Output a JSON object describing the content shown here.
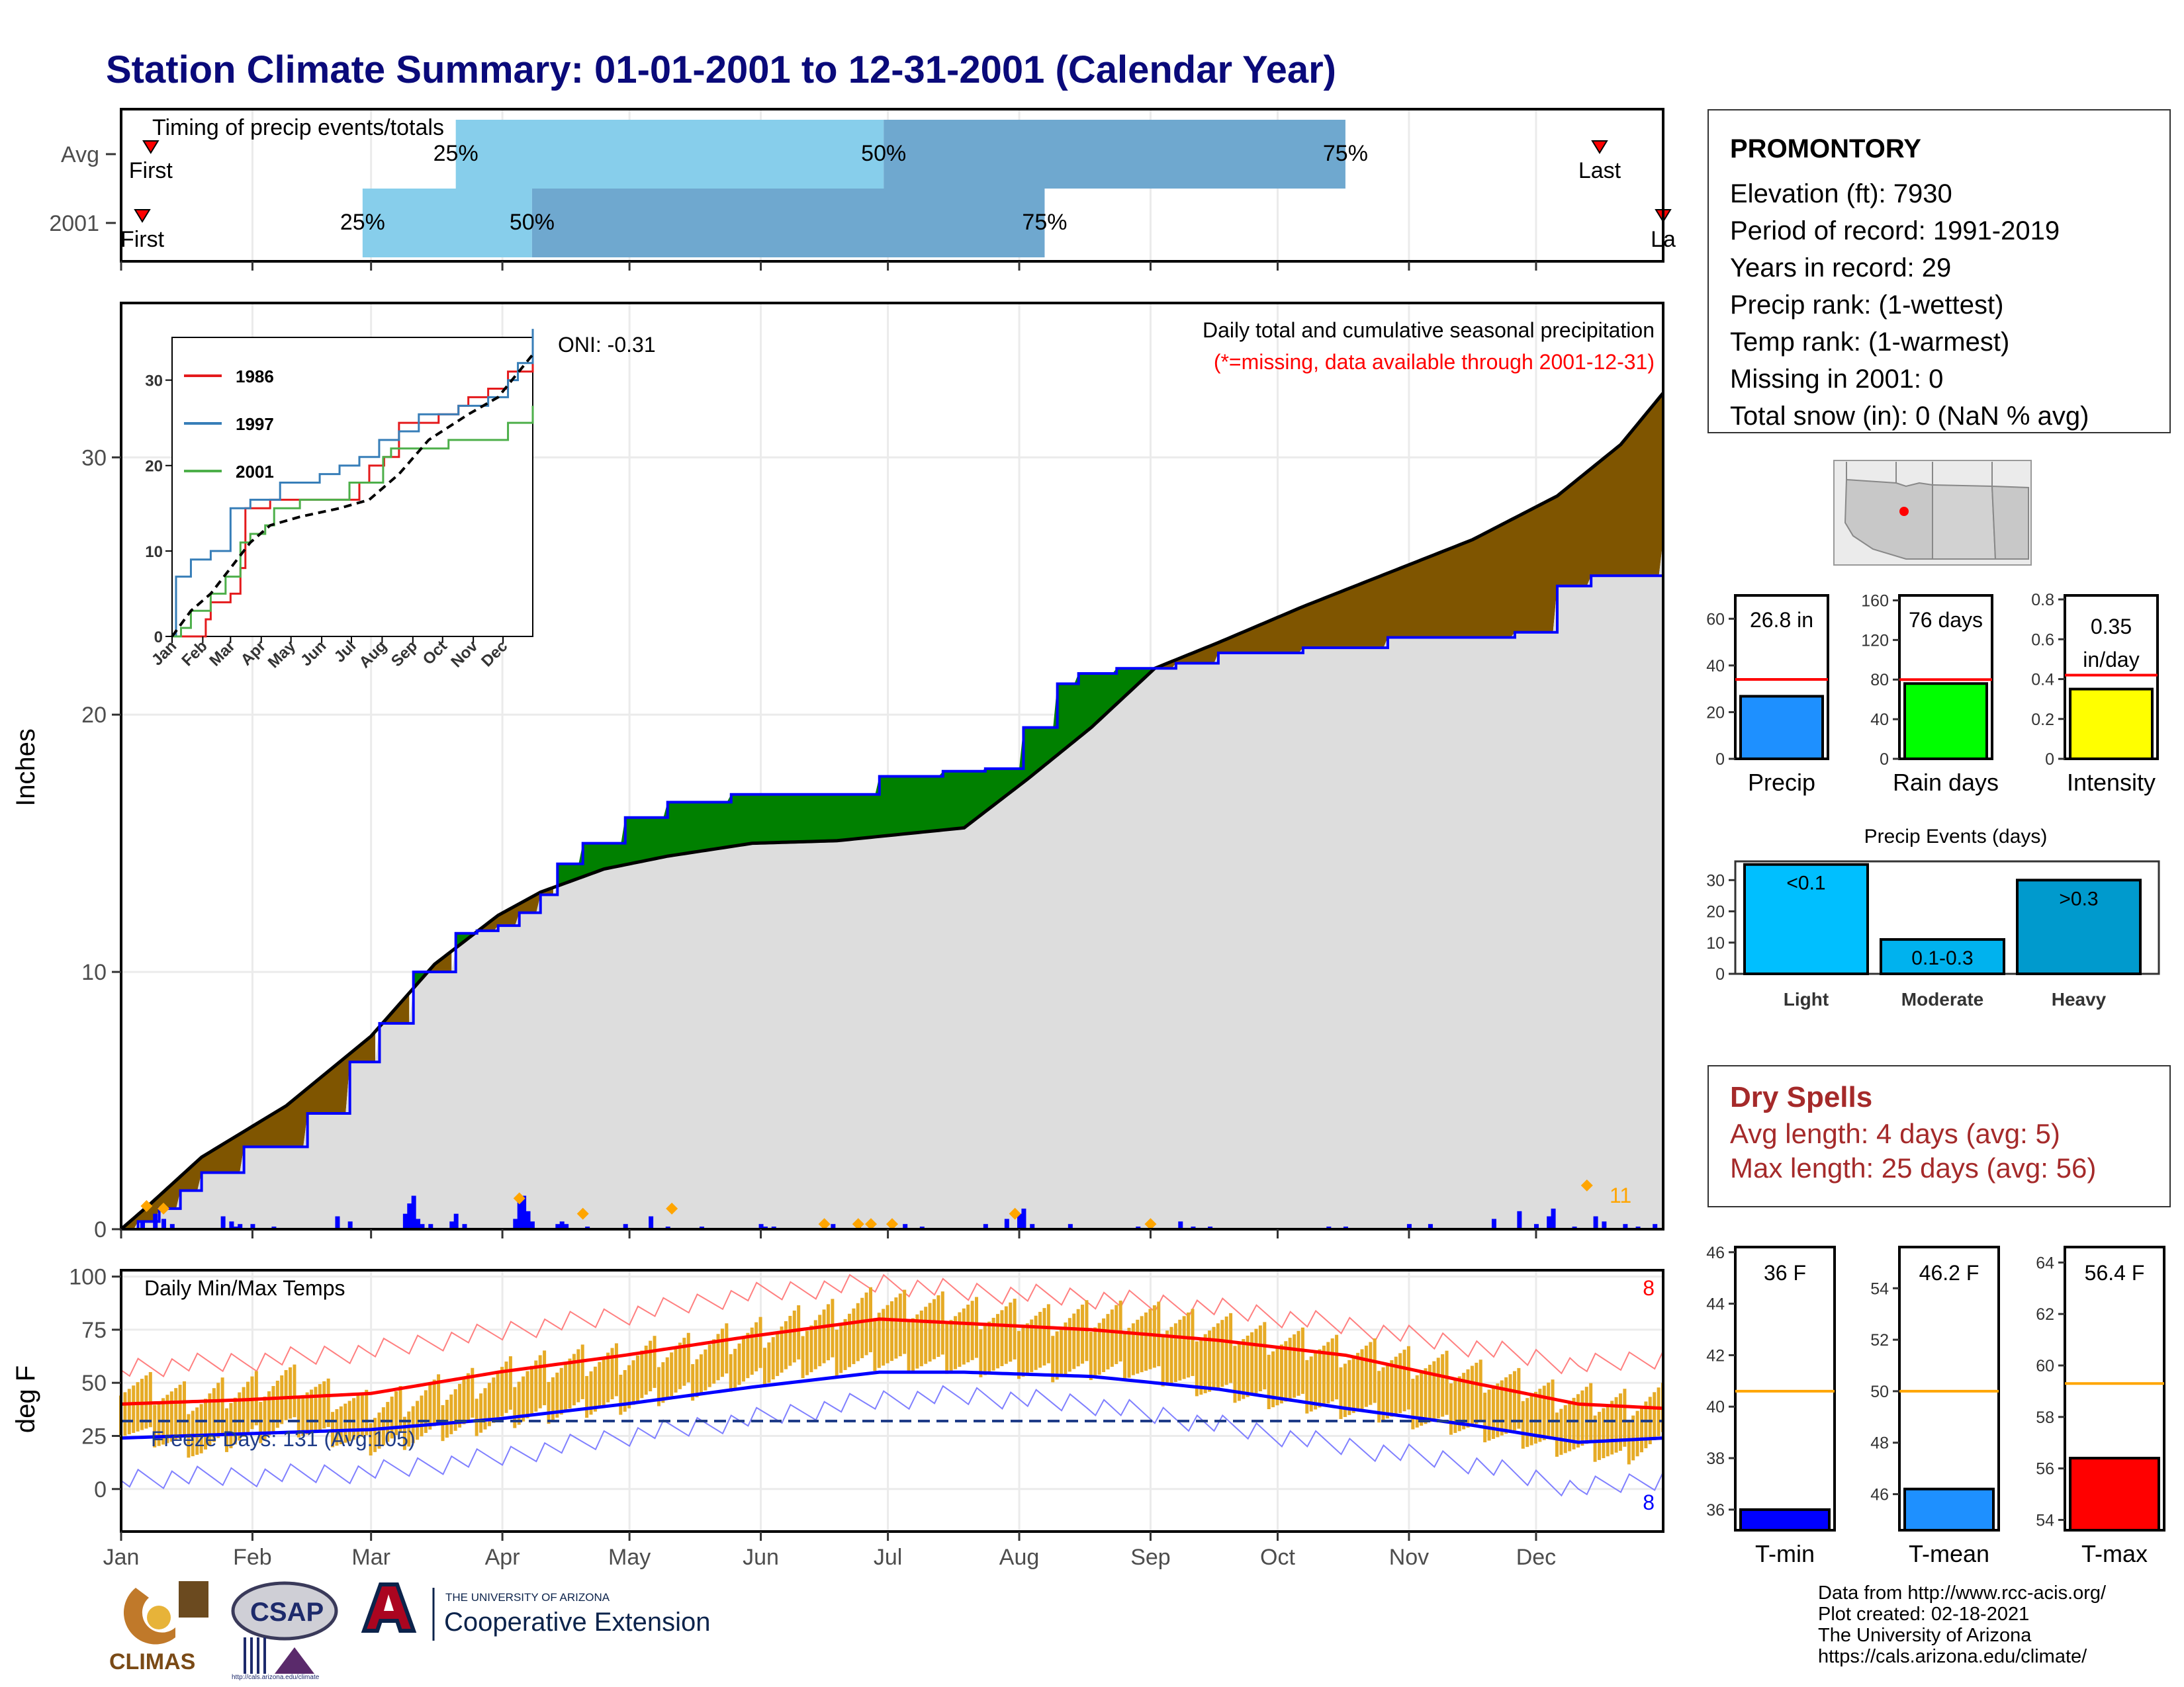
{
  "page_title": "Station Climate Summary: 01-01-2001 to 12-31-2001 (Calendar Year)",
  "station": {
    "name": "PROMONTORY",
    "lines": [
      "Elevation (ft): 7930",
      "Period of record: 1991-2019",
      "Years in record: 29",
      "Precip rank:  (1-wettest)",
      "Temp rank:  (1-warmest)",
      "Missing in 2001: 0",
      "Total snow (in): 0 (NaN % avg)"
    ]
  },
  "dry_spells": {
    "heading": "Dry Spells",
    "avg_length": "Avg length: 4 days (avg: 5)",
    "max_length": "Max length: 25 days (avg: 56)"
  },
  "credits": [
    "Data from http://www.rcc-acis.org/",
    "Plot created: 02-18-2021",
    "The University of Arizona",
    "https://cals.arizona.edu/climate/"
  ],
  "logos": {
    "climas": "CLIMAS",
    "csap": "CSAP",
    "csap_url": "http://cals.arizona.edu/climate",
    "ua_top": "THE UNIVERSITY OF ARIZONA",
    "ua_bottom": "Cooperative Extension"
  },
  "colors": {
    "title": "#0a0a7a",
    "observed_fill": "#dddddd",
    "deficit_fill": "#7f5500",
    "surplus_fill": "#008000",
    "observed_line": "#0000ff",
    "normal_line": "#000000",
    "bar_precip": "#1e90ff",
    "bar_raindays": "#00ff00",
    "bar_intensity": "#ffff00",
    "events_light": "#00bfff",
    "events_moderate": "#00b2ee",
    "events_heavy": "#009acd",
    "tmin": "#0000ff",
    "tmean": "#1e90ff",
    "tmax": "#ff0000",
    "temp_range_bar": "#e6ab26",
    "dry_spells": "#a52a2a",
    "quartile_light": "#87ceeb",
    "quartile_dark": "#6fa8cf"
  },
  "chart_data": [
    {
      "id": "timing",
      "type": "bar",
      "title": "Timing of precip events/totals",
      "categories": [
        "Avg",
        "2001"
      ],
      "x_unit": "day of year",
      "xlim": [
        1,
        365
      ],
      "rows": [
        {
          "name": "Avg",
          "first": 8,
          "p25": 80,
          "p50": 181,
          "p75": 290,
          "last": 350,
          "first_label": "First",
          "last_label": "Last"
        },
        {
          "name": "2001",
          "first": 6,
          "p25": 58,
          "p50": 98,
          "p75": 219,
          "last": 365,
          "first_label": "First",
          "last_label": "La"
        }
      ],
      "quartile_labels": [
        "25%",
        "50%",
        "75%"
      ]
    },
    {
      "id": "cumulative_precip",
      "type": "area",
      "ylabel": "Inches",
      "ylim": [
        0,
        36
      ],
      "yticks": [
        0,
        10,
        20,
        30
      ],
      "title": "Daily total and cumulative seasonal precipitation",
      "subtitle": "(*=missing, data available through 2001-12-31)",
      "oni_label": "ONI: -0.31",
      "event_count_label": "11",
      "x_unit": "day of year",
      "series": [
        {
          "name": "observed",
          "x": [
            1,
            5,
            10,
            15,
            20,
            30,
            45,
            55,
            62,
            70,
            80,
            85,
            90,
            95,
            100,
            104,
            110,
            120,
            130,
            145,
            180,
            195,
            205,
            214,
            222,
            227,
            236,
            250,
            260,
            280,
            300,
            330,
            340,
            348,
            365
          ],
          "y": [
            0,
            0.3,
            0.8,
            1.5,
            2.2,
            3.2,
            4.5,
            6.5,
            8.0,
            10.0,
            11.5,
            11.6,
            11.8,
            12.3,
            13.0,
            14.2,
            15.0,
            16.0,
            16.6,
            16.9,
            17.6,
            17.8,
            17.9,
            19.5,
            21.2,
            21.6,
            21.8,
            22.0,
            22.4,
            22.6,
            23.0,
            23.2,
            25.0,
            25.4,
            26.8
          ]
        },
        {
          "name": "normal",
          "x": [
            1,
            8,
            20,
            40,
            60,
            75,
            90,
            100,
            115,
            130,
            150,
            170,
            200,
            215,
            230,
            245,
            260,
            280,
            300,
            320,
            340,
            355,
            365
          ],
          "y": [
            0,
            1.0,
            2.8,
            4.8,
            7.5,
            10.3,
            12.2,
            13.1,
            14.0,
            14.5,
            15.0,
            15.1,
            15.6,
            17.5,
            19.5,
            21.8,
            22.8,
            24.2,
            25.5,
            26.8,
            28.5,
            30.5,
            32.5
          ]
        }
      ],
      "daily": {
        "x": [
          6,
          9,
          11,
          13,
          25,
          27,
          28,
          29,
          32,
          37,
          52,
          55,
          68,
          69,
          70,
          71,
          72,
          74,
          79,
          80,
          82,
          94,
          95,
          96,
          97,
          98,
          104,
          105,
          106,
          111,
          120,
          126,
          130,
          138,
          152,
          153,
          155,
          169,
          175,
          186,
          190,
          205,
          210,
          213,
          214,
          216,
          225,
          241,
          251,
          254,
          258,
          286,
          290,
          305,
          310,
          325,
          331,
          335,
          338,
          339,
          344,
          349,
          351,
          356,
          359,
          363
        ],
        "y": [
          0.3,
          0.6,
          0.4,
          0.2,
          0.5,
          0.3,
          0.1,
          0.2,
          0.2,
          0.1,
          0.5,
          0.3,
          0.6,
          1.0,
          1.3,
          0.4,
          0.2,
          0.2,
          0.3,
          0.6,
          0.2,
          0.4,
          1.1,
          1.3,
          0.7,
          0.3,
          0.2,
          0.3,
          0.2,
          0.1,
          0.2,
          0.5,
          0.1,
          0.1,
          0.2,
          0.1,
          0.1,
          0.2,
          0.3,
          0.2,
          0.1,
          0.2,
          0.4,
          0.6,
          0.8,
          0.2,
          0.2,
          0.1,
          0.3,
          0.1,
          0.1,
          0.1,
          0.1,
          0.2,
          0.2,
          0.4,
          0.7,
          0.2,
          0.5,
          0.8,
          0.1,
          0.5,
          0.3,
          0.2,
          0.1,
          0.2
        ]
      },
      "markers": {
        "x": [
          7,
          11,
          95,
          110,
          131,
          167,
          175,
          178,
          183,
          212,
          244,
          347
        ],
        "y": [
          0.9,
          0.8,
          1.2,
          0.6,
          0.8,
          0.2,
          0.2,
          0.2,
          0.2,
          0.6,
          0.2,
          1.7
        ]
      }
    },
    {
      "id": "inset_cumulative",
      "type": "line",
      "ylim": [
        0,
        35
      ],
      "yticks": [
        0,
        10,
        20,
        30
      ],
      "categories": [
        "Jan",
        "Feb",
        "Mar",
        "Apr",
        "May",
        "Jun",
        "Jul",
        "Aug",
        "Sep",
        "Oct",
        "Nov",
        "Dec"
      ],
      "series": [
        {
          "name": "1986",
          "color": "#e41a1c",
          "x": [
            1,
            30,
            35,
            40,
            60,
            70,
            75,
            100,
            150,
            160,
            185,
            190,
            200,
            215,
            230,
            250,
            270,
            290,
            300,
            320,
            340,
            365
          ],
          "y": [
            0,
            0,
            2,
            4,
            5,
            8,
            15,
            16,
            16,
            16,
            16,
            18,
            20,
            21,
            25,
            25,
            26,
            27,
            28,
            29,
            31,
            33
          ]
        },
        {
          "name": "1997",
          "color": "#377eb8",
          "x": [
            1,
            5,
            20,
            40,
            60,
            80,
            110,
            150,
            170,
            190,
            210,
            230,
            250,
            270,
            290,
            320,
            340,
            350,
            365
          ],
          "y": [
            0,
            7,
            9,
            10,
            15,
            16,
            18,
            19,
            20,
            21,
            23,
            24,
            26,
            26,
            27,
            28,
            30,
            32,
            36
          ]
        },
        {
          "name": "2001",
          "color": "#4daf4a",
          "x": [
            1,
            10,
            20,
            40,
            55,
            70,
            80,
            95,
            104,
            130,
            180,
            214,
            222,
            250,
            280,
            310,
            340,
            365
          ],
          "y": [
            0,
            1,
            3,
            5,
            7,
            11,
            12,
            13,
            15,
            16,
            18,
            21,
            22,
            22,
            23,
            23,
            25,
            27
          ]
        },
        {
          "name": "avg",
          "color": "#000000",
          "dashed": true,
          "x": [
            1,
            20,
            40,
            60,
            80,
            100,
            130,
            170,
            200,
            230,
            260,
            300,
            330,
            365
          ],
          "y": [
            0,
            3,
            5,
            8,
            11,
            13,
            14,
            15,
            16,
            19,
            23,
            26,
            28,
            33
          ]
        }
      ]
    },
    {
      "id": "totals_precip",
      "type": "bar",
      "categories": [
        "Precip"
      ],
      "values": [
        26.8
      ],
      "avg": 34,
      "ylim": [
        0,
        70
      ],
      "yticks": [
        0,
        20,
        40,
        60
      ],
      "label": "26.8 in"
    },
    {
      "id": "totals_raindays",
      "type": "bar",
      "categories": [
        "Rain days"
      ],
      "values": [
        76
      ],
      "avg": 80,
      "ylim": [
        0,
        165
      ],
      "yticks": [
        0,
        40,
        80,
        120,
        160
      ],
      "label": "76 days"
    },
    {
      "id": "totals_intensity",
      "type": "bar",
      "categories": [
        "Intensity"
      ],
      "values": [
        0.35
      ],
      "avg": 0.42,
      "ylim": [
        0,
        0.82
      ],
      "yticks": [
        0.0,
        0.2,
        0.4,
        0.6,
        0.8
      ],
      "label": "0.35 in/day"
    },
    {
      "id": "precip_events",
      "type": "bar",
      "title": "Precip Events (days)",
      "categories": [
        "Light",
        "Moderate",
        "Heavy"
      ],
      "values": [
        35,
        11,
        30
      ],
      "bar_labels": [
        "<0.1",
        "0.1-0.3",
        ">0.3"
      ],
      "ylim": [
        0,
        36
      ],
      "yticks": [
        0,
        10,
        20,
        30
      ]
    },
    {
      "id": "daily_temps",
      "type": "line",
      "ylabel": "deg F",
      "ylim": [
        -20,
        103
      ],
      "yticks": [
        0,
        25,
        50,
        75,
        100
      ],
      "title": "Daily Min/Max Temps",
      "freeze_label": "Freeze Days: 131 (Avg:105)",
      "freeze_line": 32,
      "count_hot": "8",
      "count_cold": "8",
      "categories": [
        "Jan",
        "Feb",
        "Mar",
        "Apr",
        "May",
        "Jun",
        "Jul",
        "Aug",
        "Sep",
        "Oct",
        "Nov",
        "Dec"
      ],
      "month_start_day": [
        1,
        32,
        60,
        91,
        121,
        152,
        182,
        213,
        244,
        274,
        305,
        335
      ],
      "series": [
        {
          "name": "avg max",
          "x": [
            1,
            30,
            60,
            90,
            120,
            150,
            180,
            200,
            230,
            260,
            290,
            320,
            345,
            365
          ],
          "y": [
            40,
            42,
            45,
            55,
            63,
            72,
            80,
            78,
            75,
            70,
            63,
            50,
            40,
            38
          ]
        },
        {
          "name": "avg min",
          "x": [
            1,
            30,
            60,
            90,
            120,
            150,
            180,
            200,
            230,
            260,
            290,
            320,
            345,
            365
          ],
          "y": [
            24,
            26,
            28,
            33,
            40,
            48,
            55,
            55,
            53,
            47,
            38,
            30,
            22,
            24
          ]
        },
        {
          "name": "record max",
          "x": [
            1,
            30,
            60,
            90,
            120,
            150,
            180,
            200,
            230,
            260,
            290,
            320,
            345,
            365
          ],
          "y": [
            57,
            60,
            65,
            74,
            82,
            92,
            97,
            93,
            90,
            85,
            77,
            67,
            58,
            62
          ]
        },
        {
          "name": "record min",
          "x": [
            1,
            30,
            60,
            90,
            120,
            150,
            180,
            200,
            230,
            260,
            290,
            320,
            345,
            365
          ],
          "y": [
            5,
            6,
            8,
            15,
            25,
            33,
            42,
            44,
            40,
            30,
            20,
            12,
            0,
            5
          ]
        },
        {
          "name": "daily max",
          "x": [
            1,
            20,
            40,
            60,
            80,
            100,
            120,
            140,
            160,
            180,
            200,
            220,
            240,
            260,
            280,
            300,
            320,
            340,
            355,
            365
          ],
          "y": [
            50,
            42,
            52,
            38,
            48,
            58,
            62,
            68,
            78,
            88,
            84,
            80,
            82,
            76,
            68,
            62,
            55,
            44,
            40,
            42
          ]
        },
        {
          "name": "daily min",
          "x": [
            1,
            20,
            40,
            60,
            80,
            100,
            120,
            140,
            160,
            180,
            200,
            220,
            240,
            260,
            280,
            300,
            320,
            340,
            355,
            365
          ],
          "y": [
            28,
            18,
            30,
            20,
            28,
            35,
            40,
            48,
            56,
            60,
            58,
            55,
            56,
            46,
            40,
            35,
            28,
            20,
            15,
            22
          ]
        }
      ]
    },
    {
      "id": "temp_tmin",
      "type": "bar",
      "categories": [
        "T-min"
      ],
      "values": [
        36
      ],
      "avg": 40.6,
      "ylim": [
        35.2,
        46.2
      ],
      "yticks": [
        36,
        38,
        40,
        42,
        44,
        46
      ],
      "label": "36 F"
    },
    {
      "id": "temp_tmean",
      "type": "bar",
      "categories": [
        "T-mean"
      ],
      "values": [
        46.2
      ],
      "avg": 50,
      "ylim": [
        44.6,
        55.6
      ],
      "yticks": [
        46,
        48,
        50,
        52,
        54
      ],
      "label": "46.2 F"
    },
    {
      "id": "temp_tmax",
      "type": "bar",
      "categories": [
        "T-max"
      ],
      "values": [
        56.4
      ],
      "avg": 59.3,
      "ylim": [
        53.6,
        64.6
      ],
      "yticks": [
        54,
        56,
        58,
        60,
        62,
        64
      ],
      "label": "56.4 F"
    }
  ]
}
